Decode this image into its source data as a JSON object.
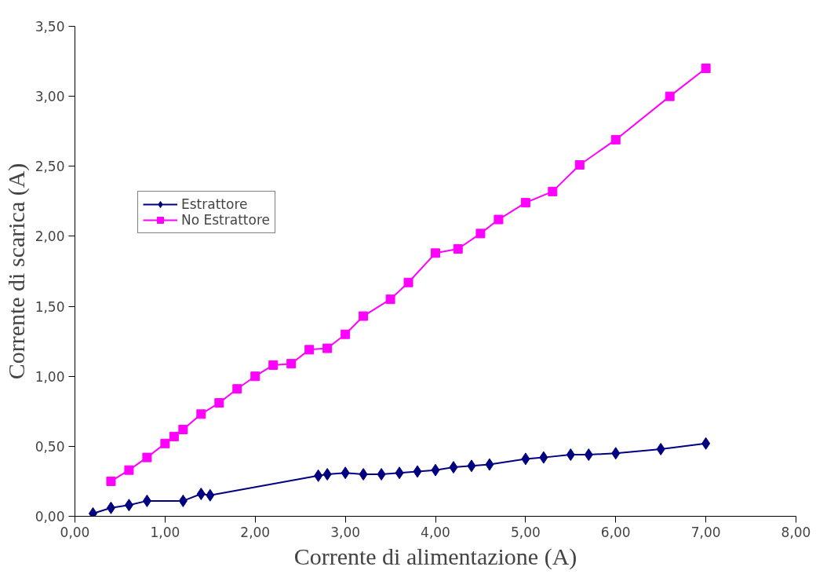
{
  "chart_data": {
    "type": "line",
    "xlabel": "Corrente di alimentazione (A)",
    "ylabel": "Corrente di scarica (A)",
    "xlim": [
      0,
      8
    ],
    "ylim": [
      0,
      3.5
    ],
    "xticks": [
      {
        "value": 0,
        "label": "0,00"
      },
      {
        "value": 1,
        "label": "1,00"
      },
      {
        "value": 2,
        "label": "2,00"
      },
      {
        "value": 3,
        "label": "3,00"
      },
      {
        "value": 4,
        "label": "4,00"
      },
      {
        "value": 5,
        "label": "5,00"
      },
      {
        "value": 6,
        "label": "6,00"
      },
      {
        "value": 7,
        "label": "7,00"
      },
      {
        "value": 8,
        "label": "8,00"
      }
    ],
    "yticks": [
      {
        "value": 0,
        "label": "0,00"
      },
      {
        "value": 0.5,
        "label": "0,50"
      },
      {
        "value": 1,
        "label": "1,00"
      },
      {
        "value": 1.5,
        "label": "1,50"
      },
      {
        "value": 2,
        "label": "2,00"
      },
      {
        "value": 2.5,
        "label": "2,50"
      },
      {
        "value": 3,
        "label": "3,00"
      },
      {
        "value": 3.5,
        "label": "3,50"
      }
    ],
    "grid": false,
    "legend": "top left",
    "series": [
      {
        "name": "Estrattore",
        "color": "#000080",
        "marker": "diamond",
        "x": [
          0.2,
          0.4,
          0.6,
          0.8,
          1.2,
          1.4,
          1.5,
          2.7,
          2.8,
          3.0,
          3.2,
          3.4,
          3.6,
          3.8,
          4.0,
          4.2,
          4.4,
          4.6,
          5.0,
          5.2,
          5.5,
          5.7,
          6.0,
          6.5,
          7.0
        ],
        "values": [
          0.02,
          0.06,
          0.08,
          0.11,
          0.11,
          0.16,
          0.15,
          0.29,
          0.3,
          0.31,
          0.3,
          0.3,
          0.31,
          0.32,
          0.33,
          0.35,
          0.36,
          0.37,
          0.41,
          0.42,
          0.44,
          0.44,
          0.45,
          0.48,
          0.52
        ]
      },
      {
        "name": "No Estrattore",
        "color": "#ff00ff",
        "marker": "square",
        "x": [
          0.4,
          0.6,
          0.8,
          1.0,
          1.1,
          1.2,
          1.4,
          1.6,
          1.8,
          2.0,
          2.2,
          2.4,
          2.6,
          2.8,
          3.0,
          3.2,
          3.5,
          3.7,
          4.0,
          4.25,
          4.5,
          4.7,
          5.0,
          5.3,
          5.6,
          6.0,
          6.6,
          7.0
        ],
        "values": [
          0.25,
          0.33,
          0.42,
          0.52,
          0.57,
          0.62,
          0.73,
          0.81,
          0.91,
          1.0,
          1.08,
          1.09,
          1.19,
          1.2,
          1.3,
          1.43,
          1.55,
          1.67,
          1.88,
          1.91,
          2.02,
          2.12,
          2.24,
          2.32,
          2.51,
          2.69,
          3.0,
          3.2
        ]
      }
    ]
  }
}
